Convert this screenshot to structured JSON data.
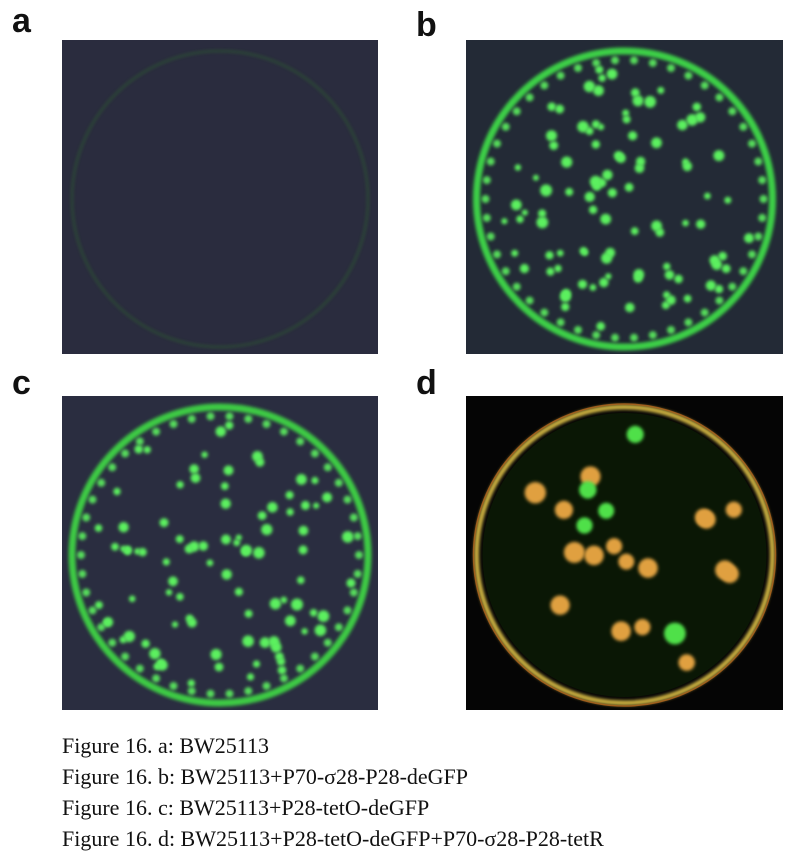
{
  "panels": [
    {
      "letter": "a",
      "background": "#2a2c3e",
      "rim": "#2f6a2a",
      "colony": "#46e34b"
    },
    {
      "letter": "b",
      "background": "#232a36",
      "rim": "#41e24a",
      "colony": "#5cf05e"
    },
    {
      "letter": "c",
      "background": "#2a2d40",
      "rim": "#3fdc45",
      "colony": "#5cf05e"
    },
    {
      "letter": "d",
      "background": "#050505",
      "rim": "#e6c84a",
      "colony_green": "#4fe04a",
      "colony_orange": "#e0a040"
    }
  ],
  "captions": [
    "Figure 16. a: BW25113",
    "Figure 16. b: BW25113+P70-σ28-P28-deGFP",
    "Figure 16. c: BW25113+P28-tetO-deGFP",
    "Figure 16. d: BW25113+P28-tetO-deGFP+P70-σ28-P28-tetR"
  ]
}
